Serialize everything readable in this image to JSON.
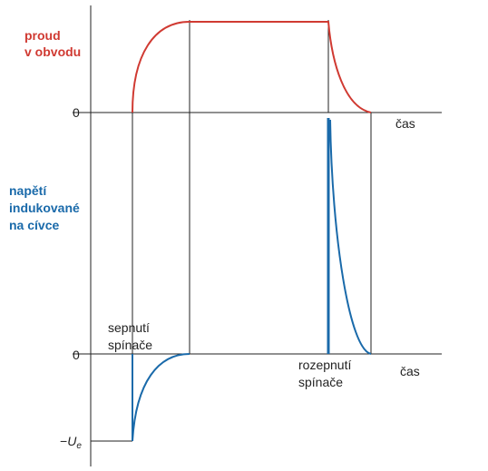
{
  "labels": {
    "current_line1": "proud",
    "current_line2": "v obvodu",
    "voltage_line1": "napětí",
    "voltage_line2": "indukované",
    "voltage_line3": "na cívce",
    "zero_top": "0",
    "zero_bottom": "0",
    "neg_u_prefix": "−",
    "neg_u_symbol": "U",
    "neg_u_sub": "e",
    "time_top": "čas",
    "time_bottom": "čas",
    "switch_on_line1": "sepnutí",
    "switch_on_line2": "spínače",
    "switch_off_line1": "rozepnutí",
    "switch_off_line2": "spínače"
  },
  "colors": {
    "current": "#d03a32",
    "voltage": "#1a6aaa",
    "axis": "#222222"
  }
}
